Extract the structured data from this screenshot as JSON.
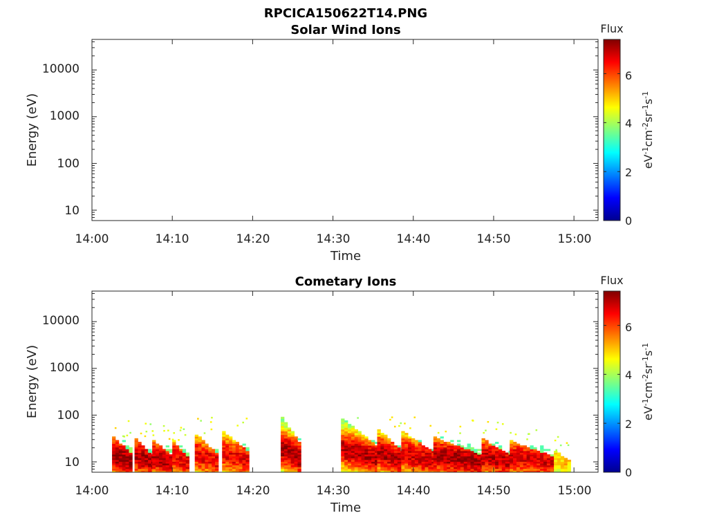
{
  "title": "RPCICA150622T14.PNG",
  "colorbar": {
    "title": "Flux",
    "units": [
      "eV",
      "-1",
      "cm",
      "-2",
      "sr",
      "-1",
      "s",
      "-1"
    ],
    "range": [
      0,
      7.4
    ],
    "ticks": [
      0,
      2,
      4,
      6
    ],
    "ticks_text": [
      "0",
      "2",
      "4",
      "6"
    ],
    "colormap": "jet"
  },
  "chart_data": [
    {
      "type": "heatmap",
      "title": "Solar Wind Ions",
      "xlabel": "Time",
      "ylabel": "Energy (eV)",
      "xticks": [
        "14:00",
        "14:10",
        "14:20",
        "14:30",
        "14:40",
        "14:50",
        "15:00"
      ],
      "xlim_minutes": [
        0,
        63
      ],
      "yscale": "log",
      "ylim": [
        6,
        45000
      ],
      "yticks": [
        10,
        100,
        1000,
        10000
      ],
      "yticks_text": [
        "10",
        "100",
        "1000",
        "10000"
      ],
      "bursts": []
    },
    {
      "type": "heatmap",
      "title": "Cometary Ions",
      "xlabel": "Time",
      "ylabel": "Energy (eV)",
      "xticks": [
        "14:00",
        "14:10",
        "14:20",
        "14:30",
        "14:40",
        "14:50",
        "15:00"
      ],
      "xlim_minutes": [
        0,
        63
      ],
      "yscale": "log",
      "ylim": [
        6,
        45000
      ],
      "yticks": [
        10,
        100,
        1000,
        10000
      ],
      "yticks_text": [
        "10",
        "100",
        "1000",
        "10000"
      ],
      "bursts": [
        {
          "start_min": 2.5,
          "end_min": 5.0,
          "peak_energy_ev": 30,
          "max_flux": 7.2
        },
        {
          "start_min": 5.3,
          "end_min": 7.5,
          "peak_energy_ev": 28,
          "max_flux": 7.0
        },
        {
          "start_min": 7.5,
          "end_min": 10.0,
          "peak_energy_ev": 25,
          "max_flux": 7.0
        },
        {
          "start_min": 10.0,
          "end_min": 11.8,
          "peak_energy_ev": 25,
          "max_flux": 6.6
        },
        {
          "start_min": 12.8,
          "end_min": 15.5,
          "peak_energy_ev": 35,
          "max_flux": 6.6
        },
        {
          "start_min": 16.2,
          "end_min": 19.5,
          "peak_energy_ev": 40,
          "max_flux": 6.6
        },
        {
          "start_min": 23.5,
          "end_min": 26.0,
          "peak_energy_ev": 80,
          "max_flux": 7.2
        },
        {
          "start_min": 31.0,
          "end_min": 35.5,
          "peak_energy_ev": 75,
          "max_flux": 7.0
        },
        {
          "start_min": 35.5,
          "end_min": 38.5,
          "peak_energy_ev": 45,
          "max_flux": 7.0
        },
        {
          "start_min": 38.5,
          "end_min": 42.5,
          "peak_energy_ev": 40,
          "max_flux": 6.8
        },
        {
          "start_min": 42.5,
          "end_min": 48.5,
          "peak_energy_ev": 30,
          "max_flux": 7.1
        },
        {
          "start_min": 48.5,
          "end_min": 52.0,
          "peak_energy_ev": 28,
          "max_flux": 6.9
        },
        {
          "start_min": 52.0,
          "end_min": 57.5,
          "peak_energy_ev": 25,
          "max_flux": 6.7
        },
        {
          "start_min": 57.5,
          "end_min": 59.5,
          "peak_energy_ev": 15,
          "max_flux": 5.0
        }
      ]
    }
  ]
}
